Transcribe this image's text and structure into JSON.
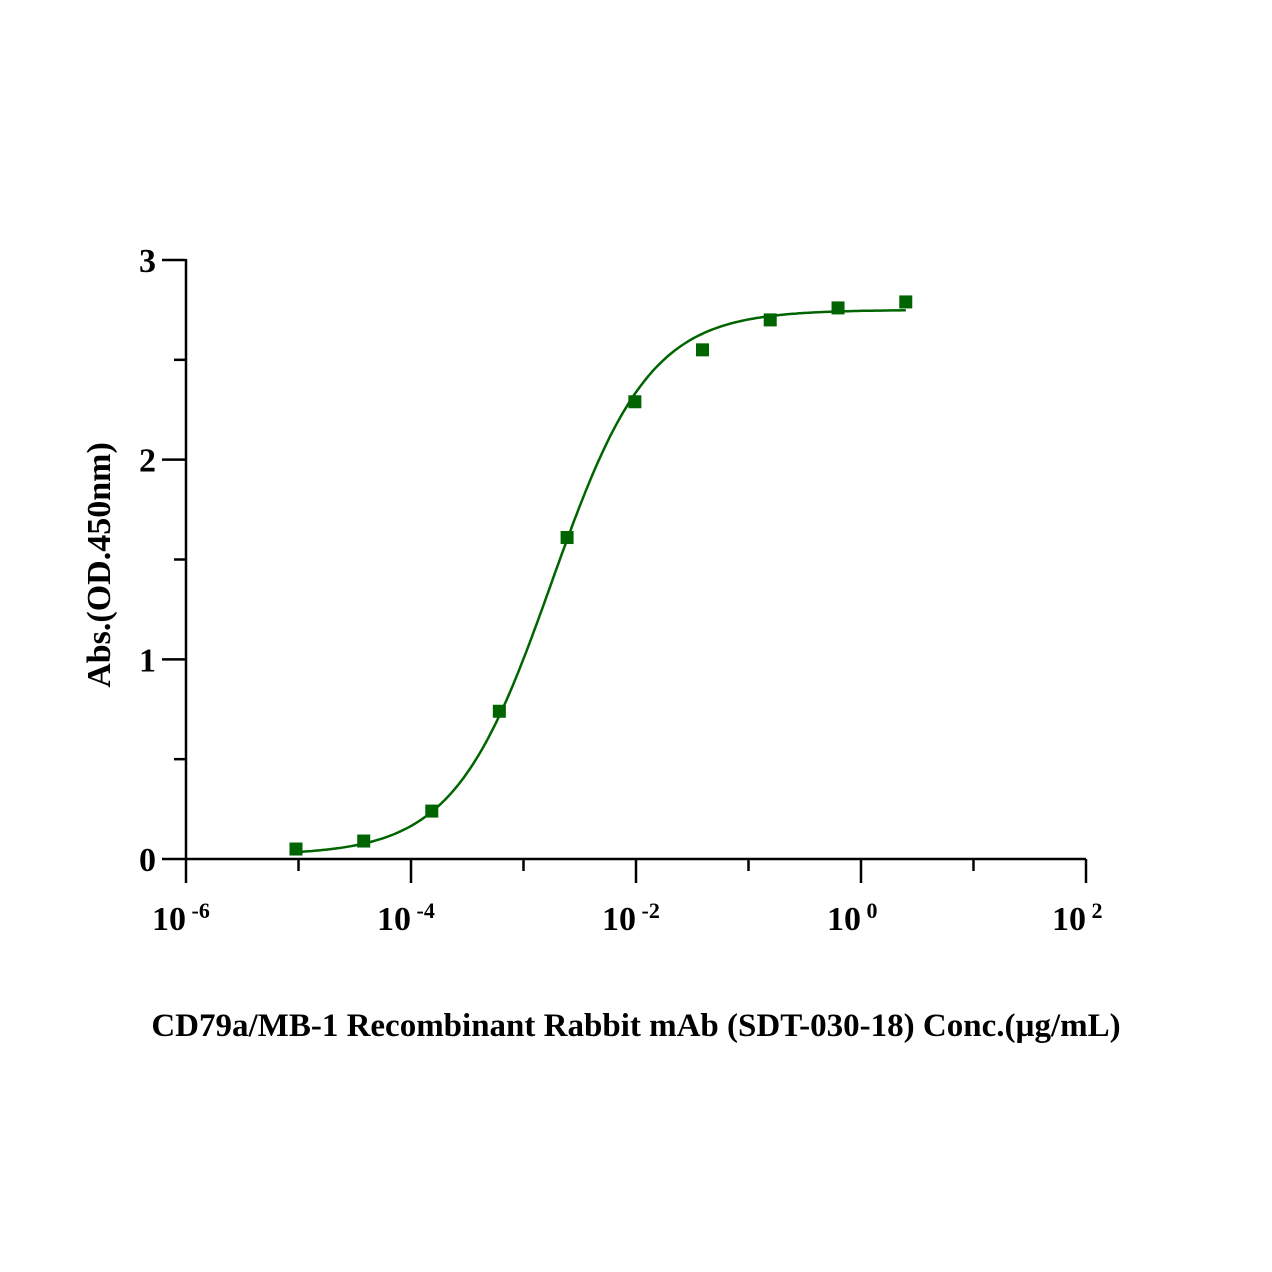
{
  "chart_data": {
    "type": "scatter",
    "title": "",
    "xlabel": "CD79a/MB-1 Recombinant Rabbit mAb (SDT-030-18) Conc.(µg/mL)",
    "ylabel": "Abs.(OD.450nm)",
    "xscale": "log",
    "xlim": [
      1e-06,
      100
    ],
    "ylim": [
      0,
      3
    ],
    "x_ticks": [
      {
        "base": "10",
        "exp": "-6",
        "value": -6
      },
      {
        "base": "10",
        "exp": "-4",
        "value": -4
      },
      {
        "base": "10",
        "exp": "-2",
        "value": -2
      },
      {
        "base": "10",
        "exp": "0",
        "value": 0
      },
      {
        "base": "10",
        "exp": "2",
        "value": 2
      }
    ],
    "y_ticks": [
      "0",
      "1",
      "2",
      "3"
    ],
    "grid": false,
    "color": "#006400",
    "series": [
      {
        "name": "CD79a/MB-1",
        "x": [
          9.5e-06,
          3.8e-05,
          0.000153,
          0.00061,
          0.00244,
          0.00977,
          0.039,
          0.156,
          0.625,
          2.5
        ],
        "y": [
          0.05,
          0.09,
          0.24,
          0.74,
          1.61,
          2.29,
          2.55,
          2.7,
          2.76,
          2.79
        ]
      }
    ],
    "fit": {
      "model": "4PL",
      "bottom": 0.02,
      "top": 2.75,
      "log_ec50": -2.75,
      "hill": 1.0
    }
  }
}
